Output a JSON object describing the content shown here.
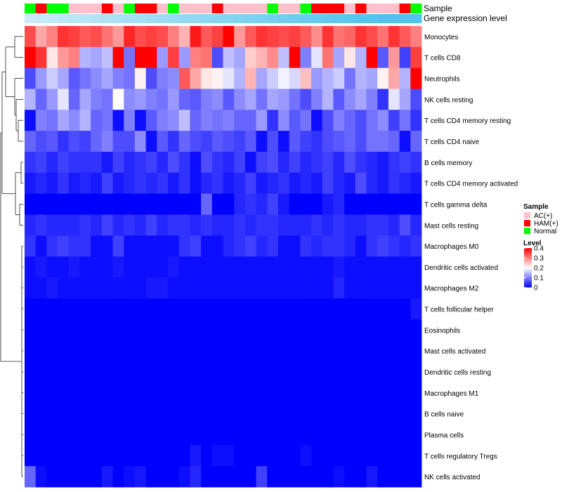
{
  "chart_data": {
    "type": "heatmap",
    "annotations": {
      "sample_title": "Sample",
      "gene_title": "Gene expression level",
      "samples": [
        "Normal",
        "HAM(+)",
        "Normal",
        "Normal",
        "AC(+)",
        "AC(+)",
        "AC(+)",
        "HAM(+)",
        "AC(+)",
        "Normal",
        "HAM(+)",
        "HAM(+)",
        "AC(+)",
        "Normal",
        "AC(+)",
        "AC(+)",
        "AC(+)",
        "HAM(+)",
        "AC(+)",
        "AC(+)",
        "AC(+)",
        "AC(+)",
        "Normal",
        "AC(+)",
        "AC(+)",
        "Normal",
        "HAM(+)",
        "HAM(+)",
        "HAM(+)",
        "AC(+)",
        "HAM(+)",
        "AC(+)",
        "AC(+)",
        "AC(+)",
        "HAM(+)",
        "Normal"
      ],
      "gene_expression": [
        0.05,
        0.08,
        0.11,
        0.14,
        0.17,
        0.2,
        0.23,
        0.26,
        0.29,
        0.32,
        0.35,
        0.38,
        0.41,
        0.44,
        0.47,
        0.5,
        0.53,
        0.56,
        0.59,
        0.62,
        0.65,
        0.68,
        0.71,
        0.74,
        0.77,
        0.8,
        0.83,
        0.86,
        0.89,
        0.92,
        0.95,
        0.98,
        1.0,
        1.0,
        1.0,
        1.0
      ]
    },
    "rows": [
      "Monocytes",
      "T cells CD8",
      "Neutrophils",
      "NK cells resting",
      "T cells CD4 memory resting",
      "T cells CD4 naive",
      "B cells memory",
      "T cells CD4 memory activated",
      "T cells gamma delta",
      "Mast cells resting",
      "Macrophages M0",
      "Dendritic cells activated",
      "Macrophages M2",
      "T cells follicular helper",
      "Eosinophils",
      "Mast cells activated",
      "Dendritic cells resting",
      "Macrophages M1",
      "B cells naive",
      "Plasma cells",
      "T cells regulatory  Tregs",
      "NK cells activated"
    ],
    "values": [
      [
        0.34,
        0.27,
        0.3,
        0.36,
        0.35,
        0.33,
        0.34,
        0.31,
        0.28,
        0.37,
        0.34,
        0.35,
        0.34,
        0.3,
        0.26,
        0.38,
        0.33,
        0.35,
        0.4,
        0.28,
        0.33,
        0.36,
        0.35,
        0.34,
        0.35,
        0.33,
        0.29,
        0.36,
        0.31,
        0.32,
        0.36,
        0.34,
        0.31,
        0.36,
        0.33,
        0.3
      ],
      [
        0.42,
        0.36,
        0.22,
        0.28,
        0.3,
        0.14,
        0.13,
        0.15,
        0.42,
        0.09,
        0.4,
        0.41,
        0.12,
        0.35,
        0.12,
        0.3,
        0.31,
        0.06,
        0.15,
        0.13,
        0.24,
        0.26,
        0.29,
        0.15,
        0.42,
        0.1,
        0.18,
        0.31,
        0.13,
        0.22,
        0.14,
        0.4,
        0.07,
        0.28,
        0.05,
        0.35
      ],
      [
        0.06,
        0.12,
        0.16,
        0.13,
        0.07,
        0.09,
        0.11,
        0.13,
        0.1,
        0.09,
        0.21,
        0.06,
        0.1,
        0.11,
        0.33,
        0.27,
        0.22,
        0.21,
        0.18,
        0.14,
        0.26,
        0.13,
        0.16,
        0.19,
        0.17,
        0.25,
        0.12,
        0.14,
        0.16,
        0.09,
        0.14,
        0.13,
        0.21,
        0.27,
        0.14,
        0.42
      ],
      [
        0.14,
        0.08,
        0.12,
        0.18,
        0.08,
        0.13,
        0.1,
        0.09,
        0.2,
        0.11,
        0.12,
        0.1,
        0.09,
        0.12,
        0.08,
        0.07,
        0.1,
        0.11,
        0.07,
        0.11,
        0.13,
        0.09,
        0.13,
        0.12,
        0.09,
        0.06,
        0.1,
        0.14,
        0.07,
        0.11,
        0.13,
        0.1,
        0.04,
        0.18,
        0.13,
        0.06
      ],
      [
        0.01,
        0.1,
        0.09,
        0.13,
        0.11,
        0.14,
        0.08,
        0.09,
        0.01,
        0.1,
        0.01,
        0.07,
        0.1,
        0.11,
        0.15,
        0.08,
        0.1,
        0.09,
        0.1,
        0.08,
        0.08,
        0.12,
        0.04,
        0.11,
        0.07,
        0.09,
        0.01,
        0.06,
        0.1,
        0.08,
        0.06,
        0.09,
        0.11,
        0.05,
        0.09,
        0.04
      ],
      [
        0.08,
        0.06,
        0.07,
        0.04,
        0.06,
        0.05,
        0.08,
        0.1,
        0.06,
        0.06,
        0.11,
        0.01,
        0.07,
        0.04,
        0.08,
        0.06,
        0.05,
        0.07,
        0.06,
        0.05,
        0.07,
        0.01,
        0.06,
        0.01,
        0.07,
        0.05,
        0.04,
        0.06,
        0.07,
        0.08,
        0.06,
        0.09,
        0.09,
        0.08,
        0.01,
        0.08
      ],
      [
        0.04,
        0.05,
        0.03,
        0.05,
        0.04,
        0.04,
        0.04,
        0.02,
        0.05,
        0.03,
        0.04,
        0.05,
        0.03,
        0.06,
        0.04,
        0.01,
        0.06,
        0.04,
        0.03,
        0.05,
        0.01,
        0.05,
        0.06,
        0.03,
        0.05,
        0.03,
        0.04,
        0.05,
        0.03,
        0.06,
        0.04,
        0.03,
        0.02,
        0.04,
        0.05,
        0.04
      ],
      [
        0.02,
        0.03,
        0.02,
        0.04,
        0.02,
        0.03,
        0.02,
        0.05,
        0.02,
        0.03,
        0.04,
        0.03,
        0.04,
        0.02,
        0.04,
        0.01,
        0.03,
        0.04,
        0.02,
        0.03,
        0.05,
        0.02,
        0.03,
        0.04,
        0.02,
        0.03,
        0.02,
        0.05,
        0.03,
        0.02,
        0.06,
        0.03,
        0.02,
        0.04,
        0.03,
        0.02
      ],
      [
        0.0,
        0.0,
        0.0,
        0.0,
        0.0,
        0.0,
        0.0,
        0.0,
        0.0,
        0.0,
        0.0,
        0.0,
        0.0,
        0.0,
        0.0,
        0.0,
        0.08,
        0.0,
        0.0,
        0.03,
        0.04,
        0.03,
        0.05,
        0.02,
        0.0,
        0.0,
        0.0,
        0.02,
        0.03,
        0.0,
        0.0,
        0.0,
        0.0,
        0.0,
        0.0,
        0.0
      ],
      [
        0.03,
        0.04,
        0.03,
        0.03,
        0.03,
        0.04,
        0.03,
        0.05,
        0.03,
        0.04,
        0.03,
        0.05,
        0.03,
        0.04,
        0.04,
        0.03,
        0.04,
        0.03,
        0.03,
        0.04,
        0.03,
        0.04,
        0.04,
        0.03,
        0.03,
        0.03,
        0.04,
        0.03,
        0.04,
        0.03,
        0.03,
        0.04,
        0.04,
        0.03,
        0.06,
        0.03
      ],
      [
        0.04,
        0.01,
        0.04,
        0.05,
        0.04,
        0.04,
        0.01,
        0.01,
        0.05,
        0.01,
        0.01,
        0.01,
        0.01,
        0.01,
        0.04,
        0.05,
        0.01,
        0.01,
        0.03,
        0.04,
        0.05,
        0.03,
        0.04,
        0.01,
        0.01,
        0.04,
        0.03,
        0.04,
        0.04,
        0.03,
        0.01,
        0.04,
        0.05,
        0.04,
        0.03,
        0.04
      ],
      [
        0.01,
        0.02,
        0.01,
        0.01,
        0.02,
        0.01,
        0.01,
        0.01,
        0.02,
        0.01,
        0.01,
        0.01,
        0.01,
        0.02,
        0.01,
        0.01,
        0.01,
        0.01,
        0.01,
        0.01,
        0.01,
        0.01,
        0.01,
        0.01,
        0.01,
        0.01,
        0.01,
        0.01,
        0.02,
        0.01,
        0.01,
        0.01,
        0.01,
        0.01,
        0.01,
        0.01
      ],
      [
        0.01,
        0.01,
        0.02,
        0.01,
        0.01,
        0.01,
        0.01,
        0.01,
        0.01,
        0.01,
        0.01,
        0.02,
        0.02,
        0.01,
        0.01,
        0.01,
        0.01,
        0.01,
        0.01,
        0.01,
        0.01,
        0.01,
        0.01,
        0.01,
        0.01,
        0.01,
        0.01,
        0.01,
        0.03,
        0.01,
        0.01,
        0.01,
        0.01,
        0.01,
        0.01,
        0.01
      ],
      [
        0.0,
        0.0,
        0.0,
        0.0,
        0.0,
        0.0,
        0.0,
        0.0,
        0.0,
        0.0,
        0.0,
        0.0,
        0.0,
        0.0,
        0.0,
        0.0,
        0.0,
        0.0,
        0.0,
        0.0,
        0.0,
        0.0,
        0.0,
        0.0,
        0.0,
        0.0,
        0.0,
        0.0,
        0.0,
        0.0,
        0.0,
        0.0,
        0.0,
        0.0,
        0.0,
        0.02
      ],
      [
        0.0,
        0.0,
        0.0,
        0.0,
        0.0,
        0.0,
        0.0,
        0.0,
        0.0,
        0.0,
        0.0,
        0.0,
        0.0,
        0.0,
        0.0,
        0.0,
        0.0,
        0.0,
        0.0,
        0.0,
        0.0,
        0.0,
        0.0,
        0.0,
        0.0,
        0.0,
        0.0,
        0.0,
        0.0,
        0.0,
        0.0,
        0.0,
        0.0,
        0.0,
        0.0,
        0.0
      ],
      [
        0.0,
        0.0,
        0.0,
        0.0,
        0.0,
        0.0,
        0.0,
        0.0,
        0.0,
        0.0,
        0.0,
        0.0,
        0.0,
        0.0,
        0.0,
        0.0,
        0.0,
        0.0,
        0.0,
        0.0,
        0.0,
        0.0,
        0.0,
        0.0,
        0.0,
        0.0,
        0.0,
        0.0,
        0.0,
        0.0,
        0.0,
        0.0,
        0.0,
        0.0,
        0.0,
        0.0
      ],
      [
        0.0,
        0.0,
        0.0,
        0.0,
        0.0,
        0.0,
        0.0,
        0.0,
        0.0,
        0.0,
        0.0,
        0.0,
        0.0,
        0.0,
        0.0,
        0.0,
        0.0,
        0.0,
        0.0,
        0.0,
        0.0,
        0.0,
        0.0,
        0.0,
        0.0,
        0.0,
        0.0,
        0.0,
        0.0,
        0.0,
        0.0,
        0.0,
        0.0,
        0.0,
        0.0,
        0.0
      ],
      [
        0.0,
        0.0,
        0.0,
        0.0,
        0.0,
        0.0,
        0.0,
        0.0,
        0.0,
        0.0,
        0.0,
        0.0,
        0.0,
        0.0,
        0.0,
        0.0,
        0.0,
        0.0,
        0.0,
        0.0,
        0.0,
        0.0,
        0.0,
        0.0,
        0.0,
        0.0,
        0.0,
        0.0,
        0.0,
        0.0,
        0.0,
        0.0,
        0.0,
        0.0,
        0.0,
        0.0
      ],
      [
        0.0,
        0.0,
        0.0,
        0.0,
        0.0,
        0.0,
        0.0,
        0.0,
        0.0,
        0.0,
        0.0,
        0.0,
        0.0,
        0.0,
        0.0,
        0.0,
        0.0,
        0.0,
        0.0,
        0.0,
        0.0,
        0.0,
        0.0,
        0.0,
        0.0,
        0.0,
        0.0,
        0.0,
        0.0,
        0.0,
        0.0,
        0.0,
        0.0,
        0.0,
        0.0,
        0.0
      ],
      [
        0.0,
        0.0,
        0.0,
        0.0,
        0.0,
        0.0,
        0.0,
        0.0,
        0.0,
        0.0,
        0.0,
        0.0,
        0.0,
        0.0,
        0.0,
        0.0,
        0.0,
        0.0,
        0.0,
        0.0,
        0.0,
        0.0,
        0.0,
        0.0,
        0.0,
        0.0,
        0.0,
        0.0,
        0.0,
        0.0,
        0.0,
        0.0,
        0.0,
        0.0,
        0.0,
        0.0
      ],
      [
        0.0,
        0.0,
        0.0,
        0.0,
        0.0,
        0.0,
        0.0,
        0.0,
        0.0,
        0.0,
        0.0,
        0.0,
        0.0,
        0.0,
        0.0,
        0.02,
        0.0,
        0.01,
        0.01,
        0.0,
        0.0,
        0.0,
        0.0,
        0.0,
        0.0,
        0.01,
        0.0,
        0.0,
        0.0,
        0.0,
        0.0,
        0.0,
        0.0,
        0.0,
        0.0,
        0.0
      ],
      [
        0.08,
        0.01,
        0.0,
        0.0,
        0.0,
        0.0,
        0.0,
        0.02,
        0.0,
        0.01,
        0.02,
        0.0,
        0.0,
        0.0,
        0.01,
        0.03,
        0.0,
        0.0,
        0.0,
        0.0,
        0.0,
        0.05,
        0.0,
        0.0,
        0.0,
        0.0,
        0.0,
        0.0,
        0.01,
        0.0,
        0.0,
        0.02,
        0.0,
        0.0,
        0.0,
        0.0
      ]
    ],
    "legend": {
      "sample_title": "Sample",
      "sample_items": [
        {
          "label": "AC(+)",
          "color": "#ffc0cb"
        },
        {
          "label": "HAM(+)",
          "color": "#ff0000"
        },
        {
          "label": "Normal",
          "color": "#00ff00"
        }
      ],
      "level_title": "Level",
      "level_ticks": [
        {
          "value": 0.4,
          "label": "0.4"
        },
        {
          "value": 0.3,
          "label": "0.3"
        },
        {
          "value": 0.2,
          "label": "0.2"
        },
        {
          "value": 0.1,
          "label": "0.1"
        },
        {
          "value": 0.0,
          "label": "0"
        }
      ]
    },
    "color_scale": {
      "low": "#0000ff",
      "mid": "#ffffff",
      "high": "#ff0000",
      "min": 0,
      "mid_value": 0.2,
      "max": 0.4
    },
    "gene_colors": {
      "light": "#cfeef8",
      "dark": "#51c2ee"
    }
  }
}
